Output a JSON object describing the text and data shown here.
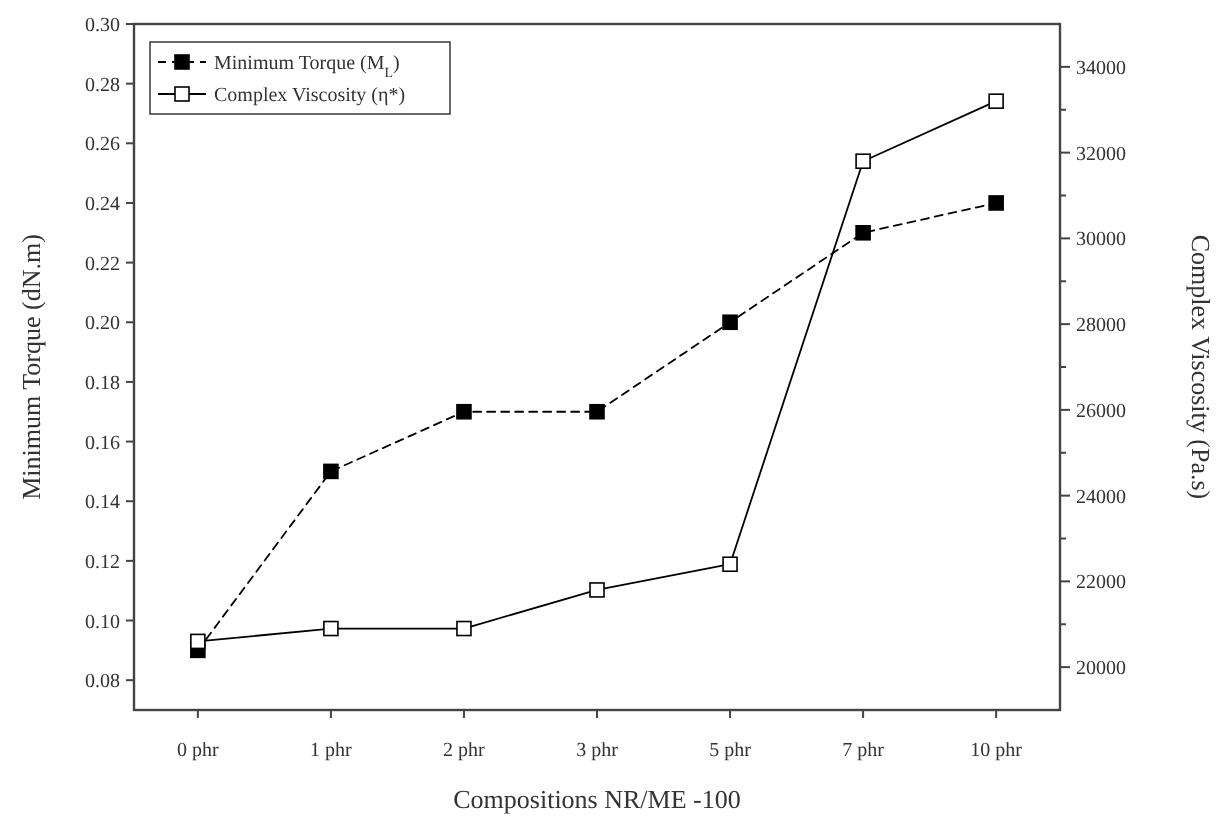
{
  "chart_data": {
    "type": "line",
    "xlabel": "Compositions  NR/ME -100",
    "ylabel": "Minimum Torque (dN.m)",
    "y2label": "Complex Viscosity  (Pa.s)",
    "categories": [
      "0 phr",
      "1 phr",
      "2 phr",
      "3 phr",
      "5 phr",
      "7 phr",
      "10 phr"
    ],
    "series": [
      {
        "name": "Minimum Torque  (M$_{L}$)",
        "color": "#000000",
        "values": [
          0.09,
          0.15,
          0.17,
          0.17,
          0.2,
          0.23,
          0.24
        ],
        "marker": "square",
        "line_style": "dashed"
      },
      {
        "name": "Complex Viscosity (η*)",
        "color": "#000000",
        "values": [
          20600,
          20900,
          20900,
          21800,
          22400,
          31800,
          33200
        ],
        "axis": "y2",
        "marker": "square",
        "line_style": "solid"
      }
    ],
    "ylim": [
      0.07,
      0.3
    ],
    "yticks": [
      {
        "value": 0.08,
        "label": "0.08"
      },
      {
        "value": 0.1,
        "label": "0.10"
      },
      {
        "value": 0.12,
        "label": "0.12"
      },
      {
        "value": 0.14,
        "label": "0.14"
      },
      {
        "value": 0.16,
        "label": "0.16"
      },
      {
        "value": 0.18,
        "label": "0.18"
      },
      {
        "value": 0.2,
        "label": "0.20"
      },
      {
        "value": 0.22,
        "label": "0.22"
      },
      {
        "value": 0.24,
        "label": "0.24"
      },
      {
        "value": 0.26,
        "label": "0.26"
      },
      {
        "value": 0.28,
        "label": "0.28"
      },
      {
        "value": 0.3,
        "label": "0.30"
      }
    ],
    "y2lim": [
      19000,
      35000
    ],
    "y2ticks": [
      20000,
      {
        "value": 21000,
        "label": null
      },
      22000,
      {
        "value": 23000,
        "label": null
      },
      24000,
      {
        "value": 25000,
        "label": null
      },
      26000,
      {
        "value": 27000,
        "label": null
      },
      28000,
      {
        "value": 29000,
        "label": null
      },
      30000,
      {
        "value": 31000,
        "label": null
      },
      32000,
      {
        "value": 33000,
        "label": null
      },
      34000
    ],
    "grid": false,
    "legend": "top left"
  }
}
